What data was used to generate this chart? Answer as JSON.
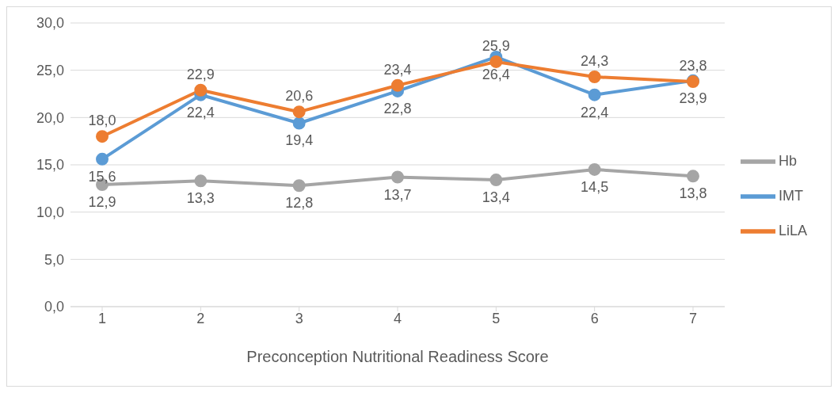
{
  "chart_data": {
    "type": "line",
    "xlabel": "Preconception Nutritional Readiness Score",
    "categories": [
      "1",
      "2",
      "3",
      "4",
      "5",
      "6",
      "7"
    ],
    "series": [
      {
        "name": "IMT",
        "color": "#5b9bd5",
        "values": [
          15.6,
          22.4,
          19.4,
          22.8,
          26.4,
          22.4,
          23.9
        ],
        "value_labels": [
          "15,6",
          "22,4",
          "19,4",
          "22,8",
          "26,4",
          "22,4",
          "23,9"
        ]
      },
      {
        "name": "LiLA",
        "color": "#ed7d31",
        "values": [
          18.0,
          22.9,
          20.6,
          23.4,
          25.9,
          24.3,
          23.8
        ],
        "value_labels": [
          "18,0",
          "22,9",
          "20,6",
          "23,4",
          "25,9",
          "24,3",
          "23,8"
        ]
      },
      {
        "name": "Hb",
        "color": "#a5a5a5",
        "values": [
          12.9,
          13.3,
          12.8,
          13.7,
          13.4,
          14.5,
          13.8
        ],
        "value_labels": [
          "12,9",
          "13,3",
          "12,8",
          "13,7",
          "13,4",
          "14,5",
          "13,8"
        ]
      }
    ],
    "ylim": [
      0,
      30
    ],
    "yticks": [
      {
        "value": 0,
        "label": "0,0"
      },
      {
        "value": 5,
        "label": "5,0"
      },
      {
        "value": 10,
        "label": "10,0"
      },
      {
        "value": 15,
        "label": "15,0"
      },
      {
        "value": 20,
        "label": "20,0"
      },
      {
        "value": 25,
        "label": "25,0"
      },
      {
        "value": 30,
        "label": "30,0"
      }
    ],
    "grid": "y",
    "legend": "right",
    "marker": "circle",
    "line_style": "solid"
  }
}
